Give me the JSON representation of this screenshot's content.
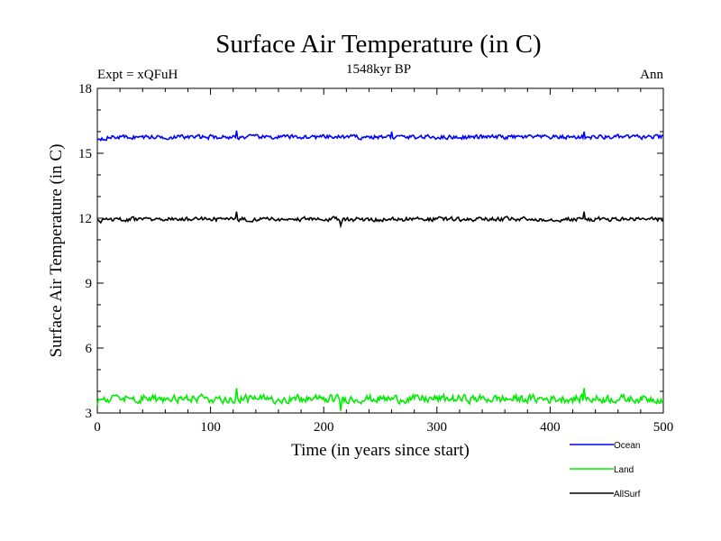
{
  "chart_data": {
    "type": "line",
    "title": "Surface Air Temperature (in C)",
    "subtitle": "1548kyr BP",
    "left_label": "Expt = xQFuH",
    "right_label": "Ann",
    "xlabel": "Time (in years since start)",
    "ylabel": "Surface Air Temperature (in C)",
    "xlim": [
      0,
      500
    ],
    "ylim": [
      3,
      18
    ],
    "xticks": [
      0,
      100,
      200,
      300,
      400,
      500
    ],
    "yticks": [
      3,
      6,
      9,
      12,
      15,
      18
    ],
    "grid": false,
    "legend_position": "bottom-right",
    "series": [
      {
        "name": "Ocean",
        "color": "#0000ff",
        "mean": 15.75,
        "noise": 0.09,
        "spikes": [
          [
            123,
            16.05
          ],
          [
            260,
            16.0
          ],
          [
            430,
            16.0
          ]
        ]
      },
      {
        "name": "Land",
        "color": "#00ee00",
        "mean": 3.65,
        "noise": 0.17,
        "spikes": [
          [
            123,
            4.15
          ],
          [
            215,
            3.1
          ],
          [
            430,
            4.15
          ]
        ]
      },
      {
        "name": "AllSurf",
        "color": "#000000",
        "mean": 11.95,
        "noise": 0.09,
        "spikes": [
          [
            123,
            12.3
          ],
          [
            215,
            11.65
          ],
          [
            430,
            12.3
          ]
        ]
      }
    ]
  }
}
